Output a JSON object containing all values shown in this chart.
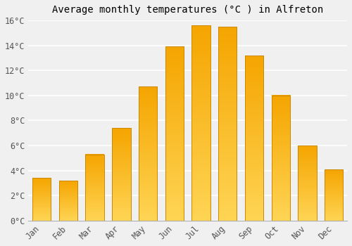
{
  "title": "Average monthly temperatures (°C ) in Alfreton",
  "months": [
    "Jan",
    "Feb",
    "Mar",
    "Apr",
    "May",
    "Jun",
    "Jul",
    "Aug",
    "Sep",
    "Oct",
    "Nov",
    "Dec"
  ],
  "values": [
    3.4,
    3.2,
    5.3,
    7.4,
    10.7,
    13.9,
    15.6,
    15.5,
    13.2,
    10.0,
    6.0,
    4.1
  ],
  "bar_color_top": "#F5A500",
  "bar_color_bottom": "#FFD555",
  "bar_edge_color": "#CC8800",
  "ylim": [
    0,
    16
  ],
  "yticks": [
    0,
    2,
    4,
    6,
    8,
    10,
    12,
    14,
    16
  ],
  "ytick_labels": [
    "0°C",
    "2°C",
    "4°C",
    "6°C",
    "8°C",
    "10°C",
    "12°C",
    "14°C",
    "16°C"
  ],
  "background_color": "#f0f0f0",
  "grid_color": "#ffffff",
  "title_fontsize": 10,
  "tick_fontsize": 8.5,
  "bar_width": 0.7
}
